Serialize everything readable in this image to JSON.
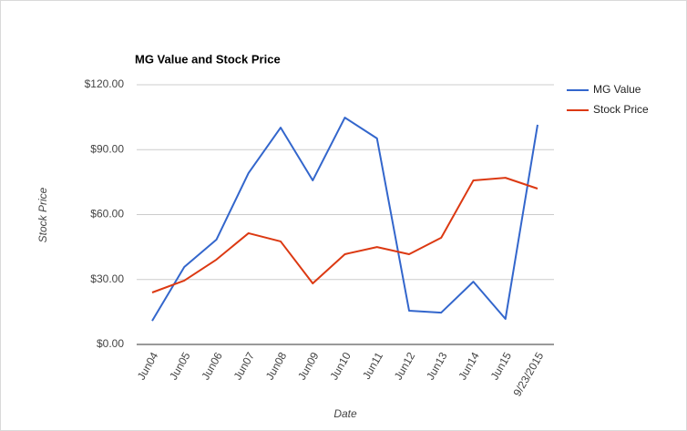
{
  "chart_data": {
    "type": "line",
    "title": "MG Value and Stock Price",
    "x_label": "Date",
    "y_label": "Stock Price",
    "categories": [
      "Jun04",
      "Jun05",
      "Jun06",
      "Jun07",
      "Jun08",
      "Jun09",
      "Jun10",
      "Jun11",
      "Jun12",
      "Jun13",
      "Jun14",
      "Jun15",
      "9/23/2015"
    ],
    "series": [
      {
        "name": "MG Value",
        "color": "#3366cc",
        "values": [
          10.9,
          35.8,
          48.4,
          79.2,
          100.2,
          75.8,
          104.8,
          95.2,
          15.6,
          14.7,
          29,
          11.8,
          101.5
        ]
      },
      {
        "name": "Stock Price",
        "color": "#dc3912",
        "values": [
          24,
          29.5,
          39.2,
          51.4,
          47.6,
          28.2,
          41.7,
          45,
          41.7,
          49.3,
          75.8,
          77,
          72
        ]
      }
    ],
    "ylim": [
      0,
      120
    ],
    "yticks": [
      {
        "value": 0,
        "label": "$0.00"
      },
      {
        "value": 30,
        "label": "$30.00"
      },
      {
        "value": 60,
        "label": "$60.00"
      },
      {
        "value": 90,
        "label": "$90.00"
      },
      {
        "value": 120,
        "label": "$120.00"
      }
    ],
    "grid": true,
    "legend": "right"
  }
}
